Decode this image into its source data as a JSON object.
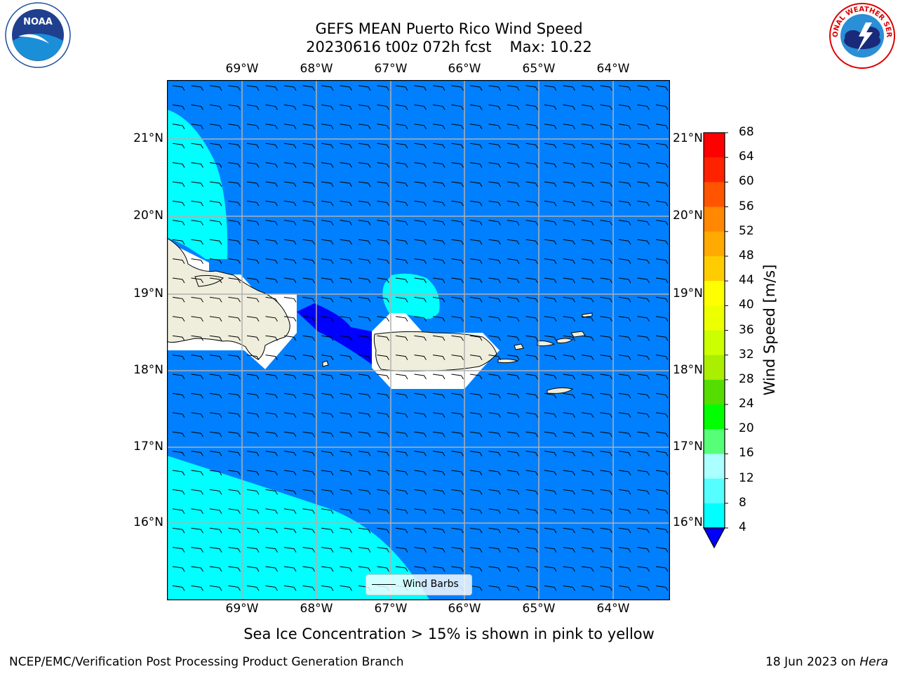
{
  "title": {
    "line1": "GEFS MEAN Puerto Rico Wind Speed",
    "line2_run": "20230616 t00z 072h fcst",
    "line2_max": "Max: 10.22"
  },
  "map": {
    "lon_labels": [
      "69°W",
      "68°W",
      "67°W",
      "66°W",
      "65°W",
      "64°W"
    ],
    "lat_labels": [
      "21°N",
      "20°N",
      "19°N",
      "18°N",
      "17°N",
      "16°N"
    ],
    "regions": [
      "Hispaniola",
      "Puerto Rico",
      "Virgin Islands"
    ],
    "colors": {
      "background": "#0080ff",
      "light": "#00ffff",
      "dark": "#0000ff",
      "land": "#efeedc",
      "grid": "#b0b0b0"
    }
  },
  "legend": {
    "label": "Wind Barbs"
  },
  "colorbar": {
    "title": "Wind Speed [m/s]",
    "ticks": [
      "68",
      "64",
      "60",
      "56",
      "52",
      "48",
      "44",
      "40",
      "36",
      "32",
      "28",
      "24",
      "20",
      "16",
      "12",
      "8",
      "4"
    ],
    "colors": [
      "#ff0000",
      "#ff2200",
      "#ff5500",
      "#ff8800",
      "#ffaa00",
      "#ffcc00",
      "#ffff00",
      "#eeff00",
      "#ccff00",
      "#aaee00",
      "#55dd00",
      "#00ff00",
      "#55ff77",
      "#aaffff",
      "#55ffff",
      "#00ffff",
      "#0080ff"
    ],
    "under_color": "#0000ff"
  },
  "note": "Sea Ice Concentration > 15% is shown in pink to yellow",
  "footer": {
    "left": "NCEP/EMC/Verification Post Processing Product Generation Branch",
    "right_date": "18 Jun 2023 on",
    "right_machine": "Hera"
  },
  "logos": {
    "left": "NOAA",
    "right": "NATIONAL WEATHER SERVICE"
  }
}
